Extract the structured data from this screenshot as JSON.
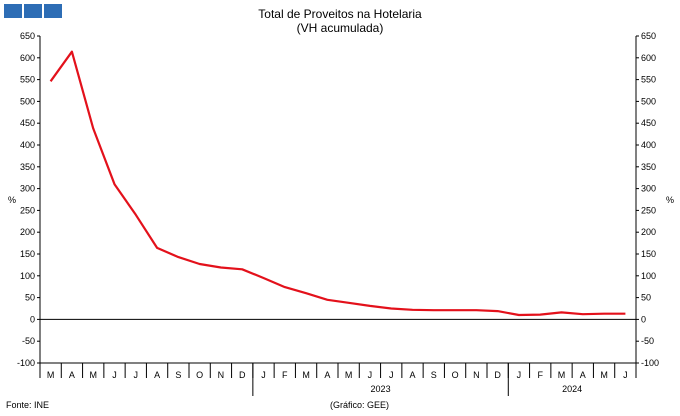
{
  "chart_data": {
    "type": "line",
    "title": "Total de Proveitos na Hotelaria",
    "subtitle": "(VH acumulada)",
    "ylabel": "%",
    "ylim": [
      -100,
      650
    ],
    "yticks": [
      -100,
      -50,
      0,
      50,
      100,
      150,
      200,
      250,
      300,
      350,
      400,
      450,
      500,
      550,
      600,
      650
    ],
    "categories": [
      "M",
      "A",
      "M",
      "J",
      "J",
      "A",
      "S",
      "O",
      "N",
      "D",
      "J",
      "F",
      "M",
      "A",
      "M",
      "J",
      "J",
      "A",
      "S",
      "O",
      "N",
      "D",
      "J",
      "F",
      "M",
      "A",
      "M",
      "J"
    ],
    "year_labels": [
      {
        "label": "2023",
        "index": 15.5
      },
      {
        "label": "2024",
        "index": 24.5
      }
    ],
    "series": [
      {
        "color": "#e3111b",
        "values": [
          546,
          614,
          438,
          310,
          240,
          164,
          143,
          127,
          119,
          115,
          95,
          74,
          60,
          45,
          38,
          31,
          25,
          22,
          21,
          21,
          21,
          19,
          10,
          11,
          16,
          12,
          13,
          13
        ]
      }
    ],
    "grid": false
  },
  "footer": {
    "source": "Fonte: INE",
    "credit": "(Gráfico: GEE)"
  }
}
